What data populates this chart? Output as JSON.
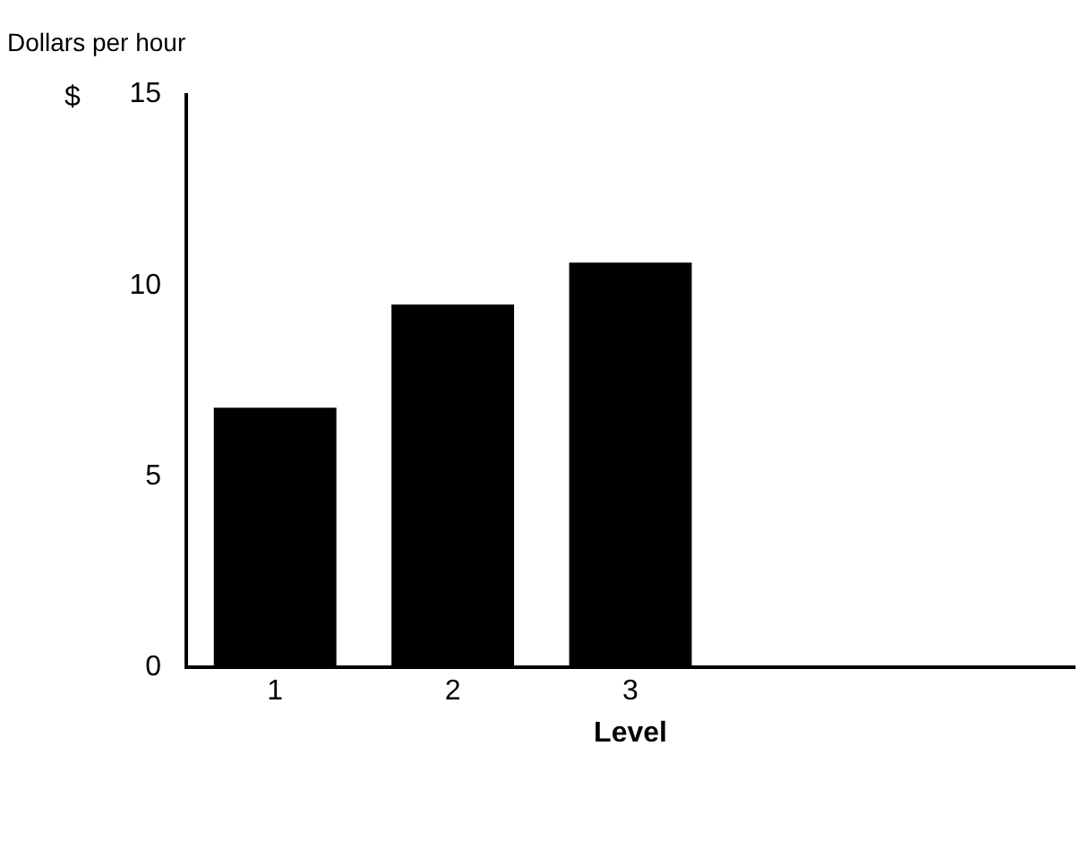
{
  "chart_data": {
    "type": "bar",
    "title": "Dollars per hour",
    "ylabel": "$",
    "xlabel": "Level",
    "categories": [
      "1",
      "2",
      "3",
      null,
      null
    ],
    "values": [
      6.8,
      9.5,
      10.6,
      null,
      null
    ],
    "color": "#000000",
    "ylim": [
      0,
      15
    ],
    "yticks": [
      0,
      5,
      10,
      15
    ],
    "grid": false,
    "legend": false
  }
}
